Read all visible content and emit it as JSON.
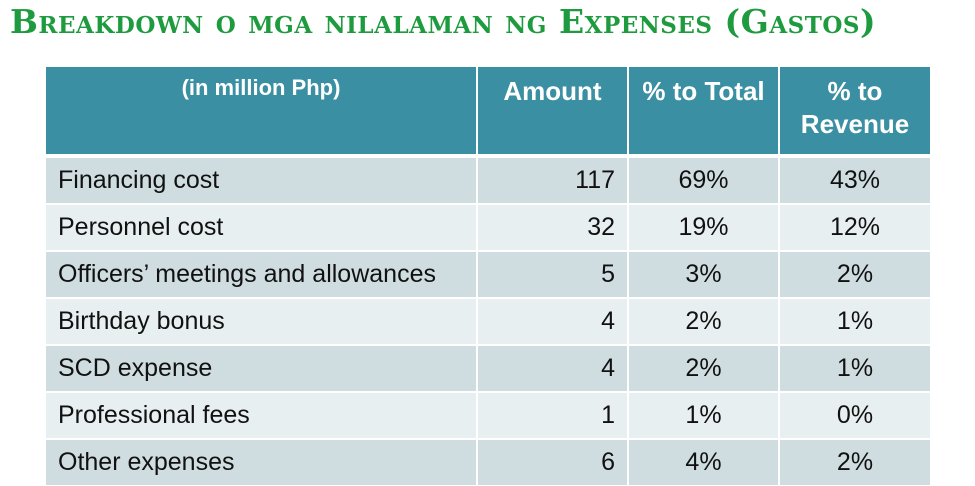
{
  "title": "Breakdown o mga nilalaman ng Expenses (Gastos)",
  "table": {
    "headers": {
      "label": "(in million Php)",
      "amount": "Amount",
      "pct_total": "% to Total",
      "pct_revenue": "% to Revenue"
    },
    "rows": [
      {
        "item": "Financing cost",
        "amount": "117",
        "pct_total": "69%",
        "pct_revenue": "43%"
      },
      {
        "item": "Personnel cost",
        "amount": "32",
        "pct_total": "19%",
        "pct_revenue": "12%"
      },
      {
        "item": "Officers’ meetings and allowances",
        "amount": "5",
        "pct_total": "3%",
        "pct_revenue": "2%"
      },
      {
        "item": "Birthday bonus",
        "amount": "4",
        "pct_total": "2%",
        "pct_revenue": "1%"
      },
      {
        "item": "SCD expense",
        "amount": "4",
        "pct_total": "2%",
        "pct_revenue": "1%"
      },
      {
        "item": "Professional fees",
        "amount": "1",
        "pct_total": "1%",
        "pct_revenue": "0%"
      },
      {
        "item": "Other expenses",
        "amount": "6",
        "pct_total": "4%",
        "pct_revenue": "2%"
      }
    ]
  },
  "colors": {
    "title": "#1f9b3f",
    "header_bg": "#3a8fa3",
    "row_odd": "#cfdde1",
    "row_even": "#e8eff1"
  }
}
